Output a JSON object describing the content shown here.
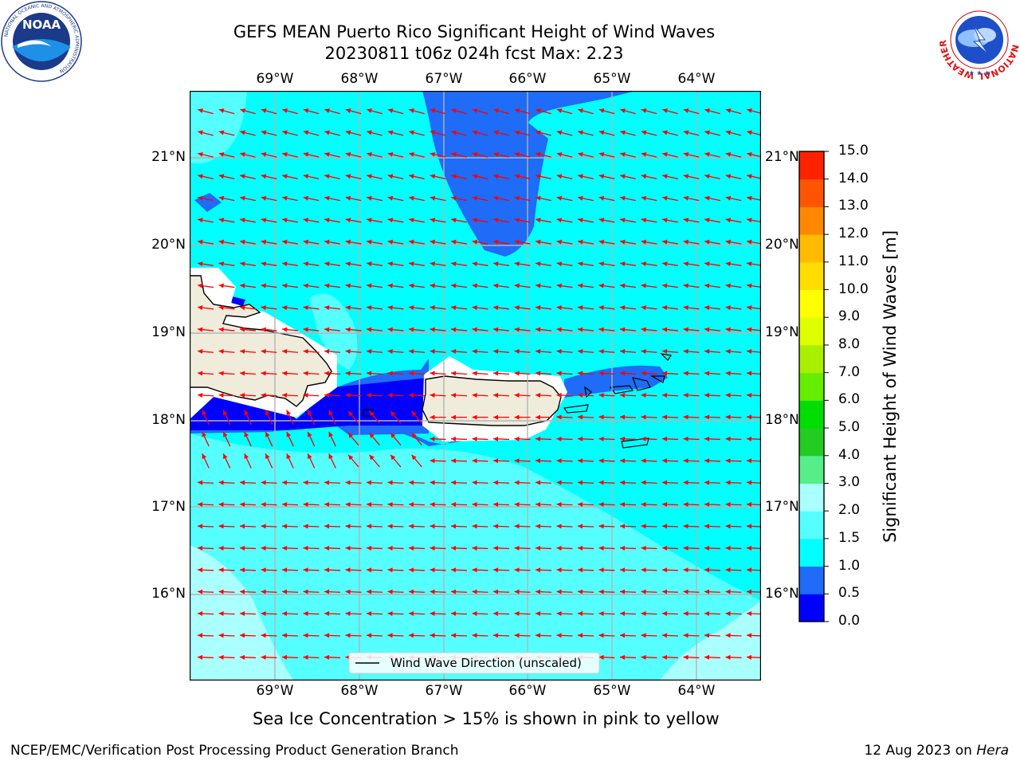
{
  "header": {
    "title_line1": "GEFS MEAN Puerto Rico Significant Height of Wind Waves",
    "title_line2": "20230811 t06z 024h fcst   Max: 2.23"
  },
  "logos": {
    "left": {
      "name": "NOAA",
      "ring_text": "NATIONAL OCEANIC AND ATMOSPHERIC ADMINISTRATION",
      "bottom_text": "U.S. DEPARTMENT OF COMMERCE"
    },
    "right": {
      "ring_text": "NATIONAL WEATHER SERVICE"
    }
  },
  "map": {
    "lon_labels": [
      "69°W",
      "68°W",
      "67°W",
      "66°W",
      "65°W",
      "64°W"
    ],
    "lat_labels": [
      "21°N",
      "20°N",
      "19°N",
      "18°N",
      "17°N",
      "16°N"
    ],
    "legend_label": "Wind Wave Direction (unscaled)",
    "arrow_color": "#ff0000",
    "land_color": "#efecdc"
  },
  "colorbar": {
    "title": "Significant Height of Wind Waves [m]",
    "ticks": [
      "0.0",
      "0.5",
      "1.0",
      "1.5",
      "2.0",
      "3.0",
      "4.0",
      "5.0",
      "6.0",
      "7.0",
      "8.0",
      "9.0",
      "10.0",
      "11.0",
      "12.0",
      "13.0",
      "14.0",
      "15.0"
    ],
    "colors": [
      "#0000ff",
      "#1e6cf8",
      "#00ffff",
      "#55ffff",
      "#aaffff",
      "#55ee88",
      "#22cc22",
      "#00dd00",
      "#66ee00",
      "#aaee00",
      "#ddff00",
      "#ffff00",
      "#ffdd00",
      "#ffbb00",
      "#ff8800",
      "#ff5500",
      "#ff2200",
      "#ff0000"
    ]
  },
  "footer": {
    "sea_ice_note": "Sea Ice Concentration > 15% is shown in pink to yellow",
    "left": "NCEP/EMC/Verification Post Processing Product Generation Branch",
    "right_date": "12 Aug 2023 on",
    "right_host": "Hera"
  }
}
